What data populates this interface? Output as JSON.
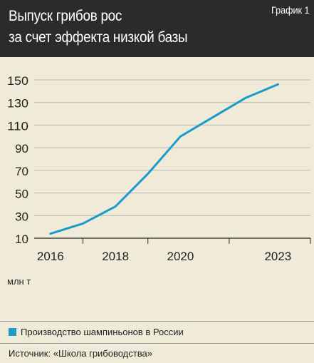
{
  "header": {
    "title_line1": "Выпуск грибов рос",
    "title_line2": "за счет эффекта низкой базы",
    "badge": "График 1"
  },
  "footer": {
    "unit": "млн т",
    "legend": "Производство шампиньонов в России",
    "source": "Источник: «Школа грибоводства»"
  },
  "chart_data": {
    "type": "line",
    "title": "Выпуск грибов рос за счет эффекта низкой базы",
    "ylabel": "млн т",
    "xlabel": "",
    "ylim": [
      10,
      150
    ],
    "xlim": [
      2015.5,
      2024.0
    ],
    "y_ticks": [
      10,
      30,
      50,
      70,
      90,
      110,
      130,
      150
    ],
    "x_tick_labels": [
      "2016",
      "2018",
      "2020",
      "2023"
    ],
    "x_tick_values": [
      2016,
      2018,
      2020,
      2023
    ],
    "grid": true,
    "legend_position": "bottom",
    "series": [
      {
        "name": "Производство шампиньонов в России",
        "color": "#1a9bc9",
        "x": [
          2016,
          2017,
          2018,
          2019,
          2020,
          2021,
          2022,
          2023
        ],
        "values": [
          14,
          23,
          38,
          67,
          100,
          117,
          134,
          146
        ]
      }
    ]
  }
}
